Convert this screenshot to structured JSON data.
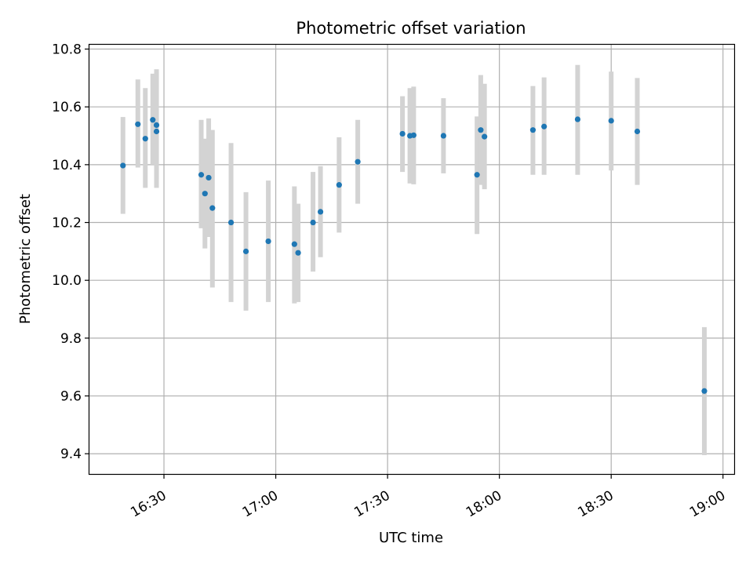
{
  "chart_data": {
    "type": "scatter",
    "title": "Photometric offset variation",
    "xlabel": "UTC time",
    "ylabel": "Photometric offset",
    "x_axis_kind": "time",
    "x_ticks": [
      "16:30",
      "17:00",
      "17:30",
      "18:00",
      "18:30",
      "19:00"
    ],
    "y_ticks": [
      "9.4",
      "9.6",
      "9.8",
      "10.0",
      "10.2",
      "10.4",
      "10.6",
      "10.8"
    ],
    "xlim": [
      "16:10",
      "19:03"
    ],
    "ylim": [
      9.33,
      10.815
    ],
    "grid": true,
    "colors": {
      "point": "#1f77b4",
      "errorbar": "#d3d3d3",
      "grid": "#b0b0b0"
    },
    "points": [
      {
        "x": "16:19",
        "y": 10.397,
        "ylow": 10.23,
        "yhigh": 10.565
      },
      {
        "x": "16:23",
        "y": 10.54,
        "ylow": 10.39,
        "yhigh": 10.695
      },
      {
        "x": "16:25",
        "y": 10.49,
        "ylow": 10.32,
        "yhigh": 10.665
      },
      {
        "x": "16:27",
        "y": 10.555,
        "ylow": 10.4,
        "yhigh": 10.715
      },
      {
        "x": "16:28",
        "y": 10.515,
        "ylow": 10.32,
        "yhigh": 10.72
      },
      {
        "x": "16:28",
        "y": 10.537,
        "ylow": 10.35,
        "yhigh": 10.73
      },
      {
        "x": "16:40",
        "y": 10.365,
        "ylow": 10.18,
        "yhigh": 10.555
      },
      {
        "x": "16:41",
        "y": 10.3,
        "ylow": 10.11,
        "yhigh": 10.49
      },
      {
        "x": "16:42",
        "y": 10.355,
        "ylow": 10.15,
        "yhigh": 10.56
      },
      {
        "x": "16:43",
        "y": 10.25,
        "ylow": 9.975,
        "yhigh": 10.52
      },
      {
        "x": "16:48",
        "y": 10.2,
        "ylow": 9.925,
        "yhigh": 10.475
      },
      {
        "x": "16:52",
        "y": 10.1,
        "ylow": 9.895,
        "yhigh": 10.305
      },
      {
        "x": "16:58",
        "y": 10.135,
        "ylow": 9.925,
        "yhigh": 10.345
      },
      {
        "x": "17:05",
        "y": 10.125,
        "ylow": 9.92,
        "yhigh": 10.325
      },
      {
        "x": "17:06",
        "y": 10.095,
        "ylow": 9.925,
        "yhigh": 10.265
      },
      {
        "x": "17:10",
        "y": 10.2,
        "ylow": 10.03,
        "yhigh": 10.375
      },
      {
        "x": "17:12",
        "y": 10.237,
        "ylow": 10.08,
        "yhigh": 10.395
      },
      {
        "x": "17:17",
        "y": 10.33,
        "ylow": 10.165,
        "yhigh": 10.495
      },
      {
        "x": "17:22",
        "y": 10.41,
        "ylow": 10.265,
        "yhigh": 10.555
      },
      {
        "x": "17:34",
        "y": 10.507,
        "ylow": 10.375,
        "yhigh": 10.637
      },
      {
        "x": "17:36",
        "y": 10.5,
        "ylow": 10.335,
        "yhigh": 10.665
      },
      {
        "x": "17:37",
        "y": 10.502,
        "ylow": 10.332,
        "yhigh": 10.67
      },
      {
        "x": "17:45",
        "y": 10.5,
        "ylow": 10.37,
        "yhigh": 10.63
      },
      {
        "x": "17:54",
        "y": 10.365,
        "ylow": 10.16,
        "yhigh": 10.567
      },
      {
        "x": "17:55",
        "y": 10.52,
        "ylow": 10.33,
        "yhigh": 10.71
      },
      {
        "x": "17:56",
        "y": 10.497,
        "ylow": 10.315,
        "yhigh": 10.68
      },
      {
        "x": "18:09",
        "y": 10.52,
        "ylow": 10.365,
        "yhigh": 10.672
      },
      {
        "x": "18:12",
        "y": 10.532,
        "ylow": 10.365,
        "yhigh": 10.702
      },
      {
        "x": "18:21",
        "y": 10.557,
        "ylow": 10.365,
        "yhigh": 10.745
      },
      {
        "x": "18:30",
        "y": 10.552,
        "ylow": 10.38,
        "yhigh": 10.722
      },
      {
        "x": "18:37",
        "y": 10.515,
        "ylow": 10.33,
        "yhigh": 10.7
      },
      {
        "x": "18:55",
        "y": 9.617,
        "ylow": 9.395,
        "yhigh": 9.838
      }
    ]
  }
}
